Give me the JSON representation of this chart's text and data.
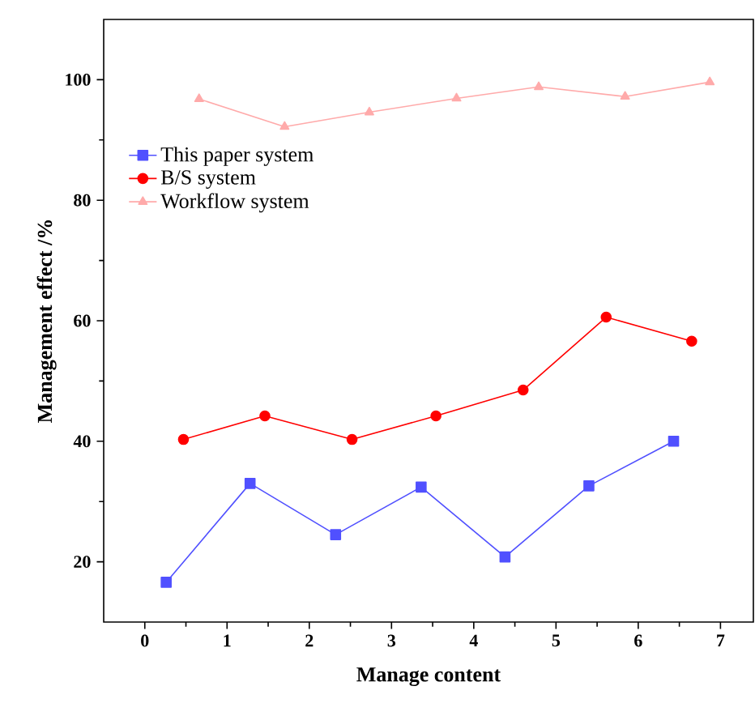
{
  "chart_data": {
    "type": "line",
    "xlabel": "Manage content",
    "ylabel": "Management effect /%",
    "xlim": [
      -0.5,
      7.4
    ],
    "ylim": [
      10,
      110
    ],
    "xticks": [
      0,
      1,
      2,
      3,
      4,
      5,
      6,
      7
    ],
    "yticks": [
      20,
      40,
      60,
      80,
      100
    ],
    "legend": "top left",
    "grid": false,
    "series": [
      {
        "name": "This paper system",
        "color": "#5050ff",
        "marker": "square",
        "x": [
          0.26,
          1.28,
          2.32,
          3.36,
          4.38,
          5.4,
          6.43
        ],
        "values": [
          16.6,
          33,
          24.5,
          32.4,
          20.8,
          32.6,
          40
        ]
      },
      {
        "name": "B/S system",
        "color": "#ff0000",
        "marker": "circle",
        "x": [
          0.47,
          1.46,
          2.52,
          3.54,
          4.6,
          5.61,
          6.65
        ],
        "values": [
          40.3,
          44.2,
          40.3,
          44.2,
          48.5,
          60.6,
          56.6
        ]
      },
      {
        "name": "Workflow system",
        "color": "#ffaaaa",
        "marker": "triangle",
        "x": [
          0.66,
          1.7,
          2.73,
          3.79,
          4.79,
          5.84,
          6.87
        ],
        "values": [
          96.8,
          92.2,
          94.6,
          96.9,
          98.8,
          97.2,
          99.6
        ]
      }
    ]
  }
}
